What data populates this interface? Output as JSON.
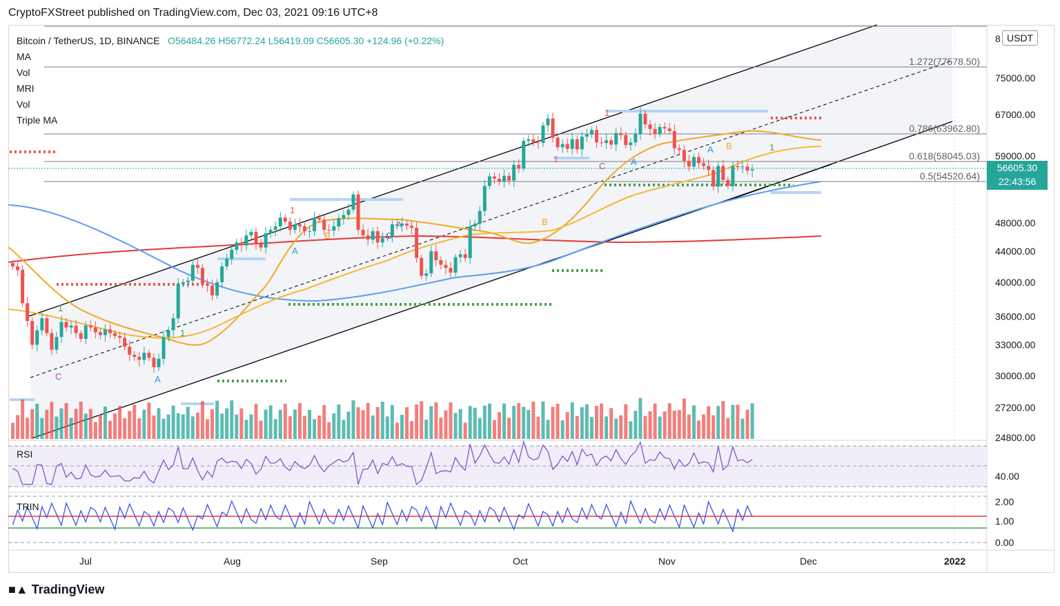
{
  "header": {
    "publisher_line": "CryptoFXStreet published on TradingView.com, Dec 03, 2021 09:16 UTC+8"
  },
  "legend": {
    "symbol": "Bitcoin / TetherUS, 1D, BINANCE",
    "ohlc": "O56484.26  H56772.24  L56419.09  C56605.30  +124.96 (+0.22%)",
    "indicators": [
      "MA",
      "Vol",
      "MRI",
      "Vol",
      "Triple MA"
    ]
  },
  "currency_button": "USDT",
  "last_price": {
    "price": "56605.30",
    "countdown": "22:43:56"
  },
  "footer": {
    "brand": "TradingView"
  },
  "colors": {
    "up": "#26a69a",
    "down": "#ef5350",
    "ma_red": "#e53935",
    "ma_blue": "#5b9cf0",
    "ma_orange": "#f5a623",
    "ma_yellow": "#f7b733",
    "rsi_line": "#7e57c2",
    "trin_line": "#3f51e0"
  },
  "chart_data": {
    "type": "line",
    "title": "Bitcoin / TetherUS, 1D, BINANCE",
    "x_ticks": [
      "Jul",
      "Aug",
      "Sep",
      "Oct",
      "Nov",
      "Dec",
      "2022"
    ],
    "y_ticks": [
      "24800.00",
      "27200.00",
      "30000.00",
      "33000.00",
      "36000.00",
      "40000.00",
      "44000.00",
      "48000.00",
      "59000.00",
      "67000.00",
      "75000.00"
    ],
    "y_top_partial_label": "8",
    "fib_levels": [
      {
        "label": "1.272(77578.50)",
        "value": 77578.5
      },
      {
        "label": "0.786(63962.80)",
        "value": 63962.8
      },
      {
        "label": "0.618(58045.03)",
        "value": 58045.03
      },
      {
        "label": "0.5(54520.64)",
        "value": 54520.64
      }
    ],
    "rsi": {
      "label": "RSI",
      "tick": "40.00"
    },
    "trin": {
      "label": "TRIN",
      "ticks": [
        "2.00",
        "1.00",
        "0.00"
      ]
    },
    "candles_close": [
      42000,
      41500,
      37500,
      35500,
      33000,
      34500,
      35800,
      34200,
      32500,
      33800,
      35400,
      34800,
      35000,
      34200,
      33600,
      35000,
      34800,
      34300,
      34000,
      34600,
      34200,
      33900,
      33700,
      32800,
      32000,
      31800,
      31500,
      32200,
      31700,
      30800,
      31600,
      33800,
      34500,
      35800,
      39800,
      40000,
      40200,
      42200,
      41800,
      39800,
      39600,
      38400,
      40000,
      42000,
      43000,
      44200,
      45200,
      44800,
      46200,
      46700,
      45000,
      44500,
      46500,
      47000,
      47500,
      48800,
      48200,
      47000,
      47800,
      47500,
      46800,
      46800,
      48800,
      48500,
      47000,
      46900,
      47500,
      48700,
      49200,
      50000,
      52400,
      47000,
      46200,
      45600,
      46800,
      45200,
      45800,
      46000,
      47800,
      47600,
      47900,
      47600,
      47300,
      43100,
      40800,
      41100,
      44000,
      42800,
      42200,
      41800,
      41200,
      43200,
      43600,
      43100,
      47500,
      47900,
      49800,
      53800,
      55400,
      55000,
      54500,
      55500,
      54700,
      57400,
      56800,
      61800,
      62100,
      61500,
      61400,
      64800,
      66200,
      62400,
      60600,
      61200,
      60300,
      62100,
      60200,
      62600,
      63000,
      63900,
      61500,
      61400,
      61900,
      61100,
      63300,
      62900,
      61000,
      61500,
      63200,
      67200,
      65000,
      64100,
      63100,
      64500,
      64200,
      63700,
      60400,
      60100,
      58100,
      57100,
      58800,
      57700,
      57200,
      56500,
      53700,
      57200,
      54800,
      53800,
      57200,
      57000,
      57100,
      56400,
      56605
    ]
  }
}
